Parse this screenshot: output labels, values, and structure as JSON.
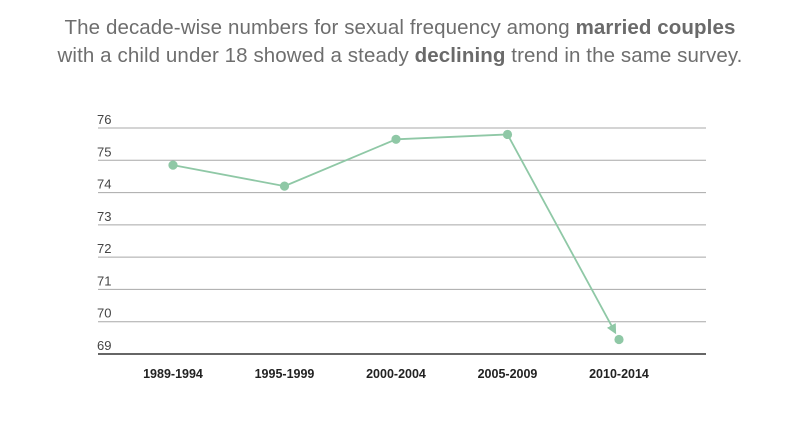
{
  "headline": {
    "line1_pre": "The decade-wise numbers for sexual frequency among ",
    "line1_bold": "married couples",
    "line2_pre": "with a child under 18 showed a steady ",
    "line2_bold": "declining",
    "line2_post": " trend in the same survey."
  },
  "colors": {
    "series": "#8fc8a6",
    "grid": "#a8a8a8",
    "axis": "#333333",
    "headline": "#6e6e6e"
  },
  "chart_data": {
    "type": "line",
    "title": "",
    "xlabel": "",
    "ylabel": "",
    "categories": [
      "1989-1994",
      "1995-1999",
      "2000-2004",
      "2005-2009",
      "2010-2014"
    ],
    "series": [
      {
        "values": [
          74.85,
          74.2,
          75.65,
          75.8,
          69.45
        ]
      }
    ],
    "ylim": [
      69,
      76
    ],
    "yticks": [
      69,
      70,
      71,
      72,
      73,
      74,
      75,
      76
    ],
    "grid": true,
    "legend": "none",
    "annotation": "arrow-on-final-segment"
  }
}
